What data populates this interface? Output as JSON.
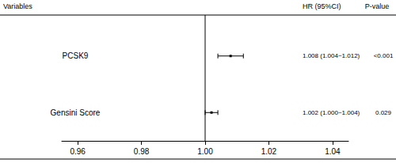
{
  "chart_data": {
    "type": "forest",
    "columns": {
      "variables": "Variables",
      "estimate": "HR (95%CI)",
      "p": "P-value"
    },
    "categories": [
      "PCSK9",
      "Gensini Score"
    ],
    "values": [
      1.008,
      1.002
    ],
    "ci_low": [
      1.004,
      1.0
    ],
    "ci_high": [
      1.012,
      1.004
    ],
    "value_labels": [
      "1.008 (1.004~1.012)",
      "1.002 (1.000~1.004)"
    ],
    "p_values": [
      "<0.001",
      "0.029"
    ],
    "reference": 1,
    "xlim": [
      0.955,
      1.045
    ],
    "xticks": [
      0.96,
      0.98,
      {
        "value": 1,
        "label": "1.00"
      },
      1.02,
      1.04
    ],
    "color": "#000000",
    "grid": false
  }
}
